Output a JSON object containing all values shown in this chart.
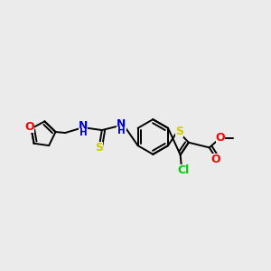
{
  "background_color": "#ebebeb",
  "figsize": [
    3.0,
    3.0
  ],
  "dpi": 100,
  "lw": 1.4,
  "colors": {
    "S": "#cccc00",
    "O": "#ff0000",
    "N": "#0000cc",
    "Cl": "#00cc00",
    "C": "#000000"
  }
}
